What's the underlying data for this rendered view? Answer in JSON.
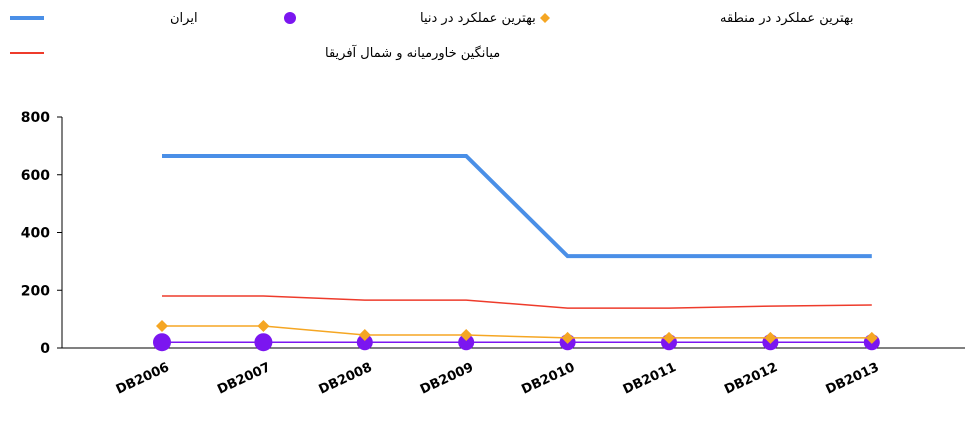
{
  "chart_data": {
    "type": "line",
    "categories": [
      "DB2006",
      "DB2007",
      "DB2008",
      "DB2009",
      "DB2010",
      "DB2011",
      "DB2012",
      "DB2013"
    ],
    "series": [
      {
        "name": "ایران",
        "color": "#4a8fe7",
        "marker": "none",
        "values": [
          665,
          665,
          665,
          665,
          318,
          318,
          318,
          318
        ]
      },
      {
        "name": "بهترین عملکرد در دنیا",
        "color": "#7b16f0",
        "marker": "circle",
        "values": [
          20,
          20,
          20,
          20,
          20,
          20,
          20,
          20
        ]
      },
      {
        "name": "بهترین عملکرد در منطقه",
        "color": "#f5a623",
        "marker": "diamond",
        "values": [
          76,
          76,
          45,
          45,
          35,
          35,
          35,
          35
        ]
      },
      {
        "name": "میانگین خاورمیانه و شمال آفریقا",
        "color": "#ee3b2b",
        "marker": "none",
        "values": [
          180,
          180,
          166,
          166,
          138,
          138,
          145,
          149
        ]
      }
    ],
    "ylim": [
      0,
      800
    ],
    "yticks": [
      0,
      200,
      400,
      600,
      800
    ]
  }
}
